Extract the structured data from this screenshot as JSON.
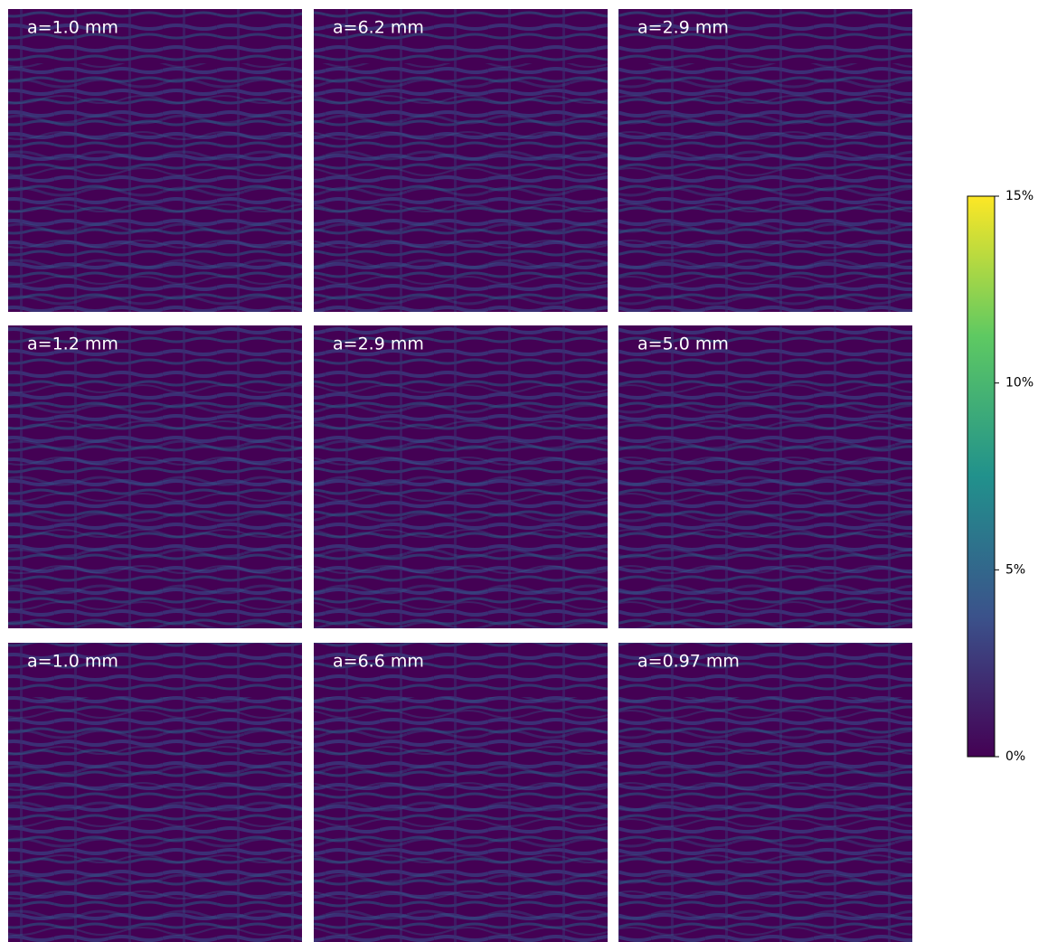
{
  "chart_data": {
    "type": "heatmap-grid",
    "colormap": "viridis",
    "panels": [
      "a=1.0 mm",
      "a=6.2 mm",
      "a=2.9 mm",
      "a=1.2 mm",
      "a=2.9 mm",
      "a=5.0 mm",
      "a=1.0 mm",
      "a=6.6 mm",
      "a=0.97 mm"
    ],
    "colorbar": {
      "lim": [
        0,
        15
      ],
      "ticks": [
        {
          "value": 0,
          "label": "0%"
        },
        {
          "value": 5,
          "label": "5%"
        },
        {
          "value": 10,
          "label": "10%"
        },
        {
          "value": 15,
          "label": "15%"
        }
      ]
    }
  }
}
